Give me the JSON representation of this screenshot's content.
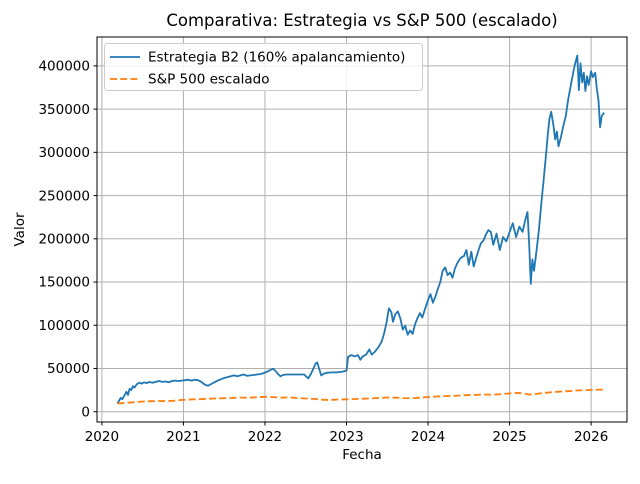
{
  "chart_data": {
    "type": "line",
    "title": "Comparativa: Estrategia vs S&P 500 (escalado)",
    "xlabel": "Fecha",
    "ylabel": "Valor",
    "x_ticks": [
      2020,
      2021,
      2022,
      2023,
      2024,
      2025,
      2026
    ],
    "y_ticks": [
      0,
      50000,
      100000,
      150000,
      200000,
      250000,
      300000,
      350000,
      400000
    ],
    "xlim": [
      2019.94,
      2026.44
    ],
    "ylim": [
      -11900,
      433400
    ],
    "grid": true,
    "grid_color": "#b0b0b0",
    "legend_position": "upper-left",
    "series": [
      {
        "name": "Estrategia B2 (160% apalancamiento)",
        "color": "#1f77b4",
        "style": "solid",
        "x": [
          2020.19,
          2020.21,
          2020.23,
          2020.25,
          2020.28,
          2020.3,
          2020.32,
          2020.34,
          2020.36,
          2020.38,
          2020.4,
          2020.43,
          2020.46,
          2020.49,
          2020.52,
          2020.55,
          2020.58,
          2020.62,
          2020.66,
          2020.7,
          2020.74,
          2020.78,
          2020.82,
          2020.86,
          2020.9,
          2020.94,
          2020.98,
          2021.02,
          2021.06,
          2021.1,
          2021.14,
          2021.18,
          2021.22,
          2021.26,
          2021.3,
          2021.34,
          2021.38,
          2021.42,
          2021.46,
          2021.5,
          2021.54,
          2021.58,
          2021.62,
          2021.66,
          2021.7,
          2021.74,
          2021.78,
          2021.82,
          2021.86,
          2021.9,
          2021.94,
          2021.98,
          2022.02,
          2022.06,
          2022.1,
          2022.13,
          2022.16,
          2022.19,
          2022.22,
          2022.26,
          2022.32,
          2022.4,
          2022.48,
          2022.53,
          2022.56,
          2022.59,
          2022.62,
          2022.64,
          2022.66,
          2022.69,
          2022.72,
          2022.76,
          2022.82,
          2022.88,
          2022.94,
          2023.0,
          2023.02,
          2023.06,
          2023.1,
          2023.14,
          2023.17,
          2023.2,
          2023.24,
          2023.28,
          2023.31,
          2023.35,
          2023.39,
          2023.43,
          2023.46,
          2023.49,
          2023.52,
          2023.55,
          2023.57,
          2023.6,
          2023.63,
          2023.66,
          2023.69,
          2023.72,
          2023.75,
          2023.78,
          2023.81,
          2023.84,
          2023.87,
          2023.9,
          2023.93,
          2023.96,
          2024.0,
          2024.03,
          2024.06,
          2024.09,
          2024.12,
          2024.15,
          2024.18,
          2024.21,
          2024.24,
          2024.27,
          2024.3,
          2024.33,
          2024.36,
          2024.4,
          2024.44,
          2024.47,
          2024.5,
          2024.53,
          2024.56,
          2024.59,
          2024.62,
          2024.65,
          2024.68,
          2024.71,
          2024.74,
          2024.77,
          2024.8,
          2024.84,
          2024.88,
          2024.92,
          2024.96,
          2025.0,
          2025.04,
          2025.08,
          2025.12,
          2025.16,
          2025.19,
          2025.22,
          2025.24,
          2025.26,
          2025.28,
          2025.3,
          2025.33,
          2025.36,
          2025.39,
          2025.42,
          2025.45,
          2025.47,
          2025.49,
          2025.51,
          2025.54,
          2025.56,
          2025.58,
          2025.6,
          2025.63,
          2025.66,
          2025.69,
          2025.72,
          2025.75,
          2025.78,
          2025.8,
          2025.83,
          2025.85,
          2025.87,
          2025.89,
          2025.91,
          2025.93,
          2025.95,
          2025.97,
          2026.0,
          2026.02,
          2026.05,
          2026.07,
          2026.09,
          2026.11,
          2026.13,
          2026.16
        ],
        "y": [
          9500,
          12500,
          16000,
          14500,
          19500,
          23000,
          19500,
          26500,
          25000,
          29500,
          28000,
          32000,
          33500,
          32500,
          34000,
          33000,
          34500,
          33500,
          34500,
          35500,
          34500,
          35000,
          34000,
          35500,
          36000,
          35500,
          36000,
          36500,
          37000,
          36000,
          37000,
          36500,
          34500,
          31500,
          30000,
          32000,
          34000,
          36000,
          37500,
          39000,
          40000,
          41000,
          42000,
          41000,
          42000,
          43000,
          41500,
          42000,
          42500,
          43000,
          43500,
          44500,
          46000,
          48000,
          49800,
          47000,
          43500,
          41000,
          42500,
          43000,
          43000,
          43000,
          43000,
          38500,
          43000,
          49000,
          55500,
          57000,
          51000,
          42000,
          44000,
          45000,
          45500,
          45500,
          46000,
          47500,
          63500,
          65500,
          64000,
          65500,
          60000,
          64000,
          66000,
          72000,
          66000,
          69500,
          74500,
          81000,
          90000,
          103000,
          119500,
          115000,
          104000,
          113000,
          116000,
          108000,
          95000,
          99500,
          89000,
          94000,
          90000,
          101000,
          108000,
          114000,
          109000,
          118000,
          129000,
          136000,
          126000,
          133000,
          142000,
          150000,
          163000,
          167000,
          158000,
          161000,
          155000,
          166000,
          172000,
          178000,
          180000,
          187000,
          170000,
          185000,
          168000,
          178000,
          187000,
          195000,
          198000,
          205000,
          210000,
          208000,
          193000,
          206000,
          187000,
          202000,
          197000,
          208000,
          218000,
          202000,
          214000,
          208000,
          221000,
          231000,
          193000,
          148000,
          176000,
          163000,
          186000,
          210000,
          242000,
          270000,
          301000,
          322000,
          339000,
          347000,
          330000,
          315000,
          324000,
          307000,
          318000,
          331000,
          342000,
          362000,
          377000,
          392000,
          401000,
          412000,
          372000,
          403000,
          381000,
          392000,
          371000,
          388000,
          378000,
          394000,
          387000,
          392000,
          374000,
          360000,
          329000,
          342000,
          346000
        ]
      },
      {
        "name": "S&P 500 escalado",
        "color": "#ff7f0e",
        "style": "dashed",
        "x": [
          2020.19,
          2020.3,
          2020.4,
          2020.5,
          2020.6,
          2020.7,
          2020.8,
          2020.9,
          2021.0,
          2021.1,
          2021.2,
          2021.3,
          2021.4,
          2021.5,
          2021.6,
          2021.7,
          2021.8,
          2021.9,
          2022.0,
          2022.1,
          2022.2,
          2022.3,
          2022.4,
          2022.5,
          2022.6,
          2022.7,
          2022.8,
          2022.9,
          2023.0,
          2023.1,
          2023.2,
          2023.3,
          2023.4,
          2023.5,
          2023.6,
          2023.7,
          2023.8,
          2023.9,
          2024.0,
          2024.1,
          2024.2,
          2024.3,
          2024.4,
          2024.5,
          2024.6,
          2024.7,
          2024.8,
          2024.9,
          2025.0,
          2025.1,
          2025.15,
          2025.25,
          2025.35,
          2025.45,
          2025.55,
          2025.65,
          2025.75,
          2025.85,
          2025.95,
          2026.05,
          2026.15
        ],
        "y": [
          9500,
          10300,
          11000,
          11800,
          12100,
          12400,
          12300,
          12900,
          13800,
          14200,
          14500,
          15000,
          15300,
          15600,
          16000,
          16300,
          16200,
          16800,
          17300,
          16900,
          16300,
          16600,
          15800,
          15300,
          14800,
          13900,
          13600,
          14100,
          14300,
          14700,
          15000,
          15400,
          15900,
          16400,
          16200,
          15800,
          15500,
          16200,
          17000,
          17600,
          18100,
          18300,
          18700,
          19300,
          19600,
          19900,
          19700,
          20400,
          21200,
          21700,
          21500,
          19800,
          21000,
          22000,
          22800,
          23400,
          24000,
          24600,
          25000,
          25400,
          25600
        ]
      }
    ]
  }
}
